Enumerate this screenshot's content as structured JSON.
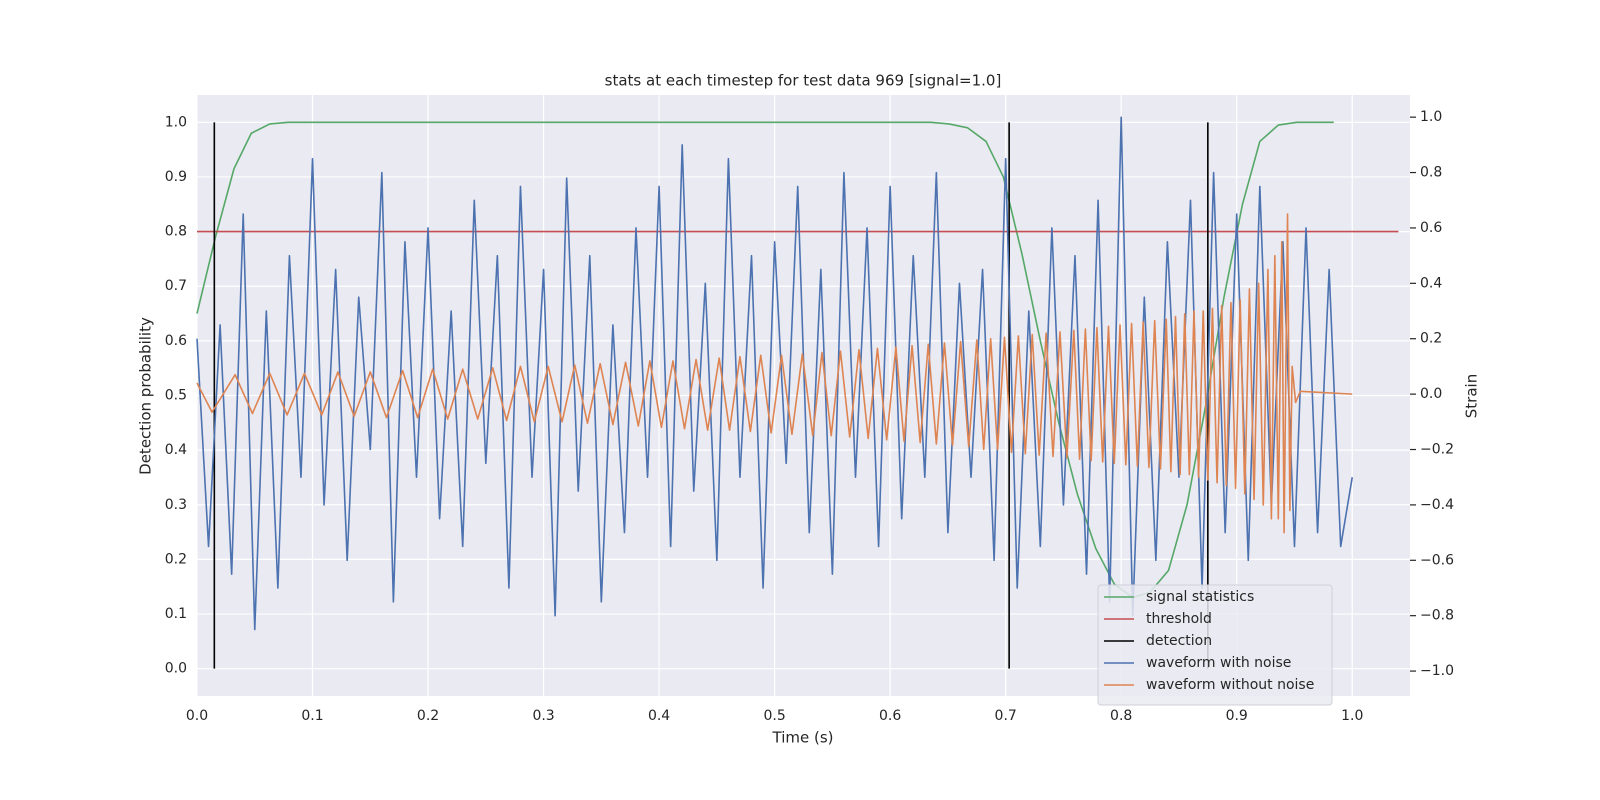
{
  "chart_data": {
    "type": "line",
    "title": "stats at each timestep for test data 969 [signal=1.0]",
    "xlabel": "Time (s)",
    "ylabel": "Detection probability",
    "y2label": "Strain",
    "xlim": [
      0,
      1.05
    ],
    "ylim": [
      -0.05,
      1.05
    ],
    "y2lim": [
      -1.09,
      1.08
    ],
    "xticks": [
      {
        "value": 0,
        "label": "0.0"
      },
      0.1,
      0.2,
      0.3,
      0.4,
      0.5,
      0.6,
      0.7,
      0.8,
      0.9,
      {
        "value": 1,
        "label": "1.0"
      }
    ],
    "yticks": [
      {
        "value": 0,
        "label": "0.0"
      },
      0.1,
      0.2,
      0.3,
      0.4,
      0.5,
      0.6,
      0.7,
      0.8,
      0.9,
      {
        "value": 1,
        "label": "1.0"
      }
    ],
    "y2ticks": [
      {
        "value": -1,
        "label": "−1.0"
      },
      {
        "value": -0.8,
        "label": "−0.8"
      },
      {
        "value": -0.6,
        "label": "−0.6"
      },
      {
        "value": -0.4,
        "label": "−0.4"
      },
      {
        "value": -0.2,
        "label": "−0.2"
      },
      {
        "value": 0,
        "label": "0.0"
      },
      0.2,
      0.4,
      0.6,
      0.8,
      {
        "value": 1,
        "label": "1.0"
      }
    ],
    "grid": true,
    "legend": "lower right",
    "series": [
      {
        "name": "signal statistics",
        "color": "#55a868",
        "kind": "line",
        "x": [
          0,
          0.016,
          0.032,
          0.047,
          0.063,
          0.079,
          0.635,
          0.651,
          0.667,
          0.683,
          0.698,
          0.714,
          0.73,
          0.746,
          0.762,
          0.778,
          0.794,
          0.81,
          0.825,
          0.841,
          0.857,
          0.873,
          0.889,
          0.905,
          0.92,
          0.936,
          0.952,
          0.968,
          0.984
        ],
        "values": [
          0.65,
          0.79,
          0.915,
          0.98,
          0.997,
          1,
          1,
          0.997,
          0.99,
          0.965,
          0.9,
          0.76,
          0.6,
          0.45,
          0.32,
          0.22,
          0.155,
          0.13,
          0.14,
          0.18,
          0.3,
          0.48,
          0.68,
          0.85,
          0.965,
          0.995,
          1,
          1,
          1
        ]
      },
      {
        "name": "threshold",
        "color": "#c44e52",
        "kind": "line",
        "x": [
          0,
          1.04
        ],
        "values": [
          0.8,
          0.8
        ]
      },
      {
        "name": "detection",
        "color": "#000000",
        "kind": "vline",
        "x": [
          0.015,
          0.703,
          0.875
        ],
        "values": [
          1,
          1,
          1
        ]
      },
      {
        "name": "waveform with noise",
        "color": "#4c72b0",
        "kind": "line",
        "axis": "y2",
        "x": [
          0,
          0.01,
          0.02,
          0.03,
          0.04,
          0.05,
          0.06,
          0.07,
          0.08,
          0.09,
          0.1,
          0.11,
          0.12,
          0.13,
          0.14,
          0.15,
          0.16,
          0.17,
          0.18,
          0.19,
          0.2,
          0.21,
          0.22,
          0.23,
          0.24,
          0.25,
          0.26,
          0.27,
          0.28,
          0.29,
          0.3,
          0.31,
          0.32,
          0.33,
          0.34,
          0.35,
          0.36,
          0.37,
          0.38,
          0.39,
          0.4,
          0.41,
          0.42,
          0.43,
          0.44,
          0.45,
          0.46,
          0.47,
          0.48,
          0.49,
          0.5,
          0.51,
          0.52,
          0.53,
          0.54,
          0.55,
          0.56,
          0.57,
          0.58,
          0.59,
          0.6,
          0.61,
          0.62,
          0.63,
          0.64,
          0.65,
          0.66,
          0.67,
          0.68,
          0.69,
          0.7,
          0.71,
          0.72,
          0.73,
          0.74,
          0.75,
          0.76,
          0.77,
          0.78,
          0.79,
          0.8,
          0.81,
          0.82,
          0.83,
          0.84,
          0.85,
          0.86,
          0.87,
          0.88,
          0.89,
          0.9,
          0.91,
          0.92,
          0.93,
          0.94,
          0.95,
          0.96,
          0.97,
          0.98,
          0.99,
          1
        ],
        "values": [
          0.2,
          -0.55,
          0.25,
          -0.65,
          0.65,
          -0.85,
          0.3,
          -0.7,
          0.5,
          -0.3,
          0.85,
          -0.4,
          0.45,
          -0.6,
          0.35,
          -0.2,
          0.8,
          -0.75,
          0.55,
          -0.3,
          0.6,
          -0.45,
          0.3,
          -0.55,
          0.7,
          -0.25,
          0.5,
          -0.7,
          0.75,
          -0.3,
          0.45,
          -0.8,
          0.78,
          -0.35,
          0.5,
          -0.75,
          0.25,
          -0.5,
          0.6,
          -0.3,
          0.75,
          -0.55,
          0.9,
          -0.35,
          0.4,
          -0.6,
          0.85,
          -0.3,
          0.5,
          -0.7,
          0.55,
          -0.25,
          0.75,
          -0.5,
          0.45,
          -0.65,
          0.8,
          -0.3,
          0.6,
          -0.55,
          0.75,
          -0.45,
          0.5,
          -0.3,
          0.8,
          -0.5,
          0.4,
          -0.3,
          0.45,
          -0.6,
          0.85,
          -0.7,
          0.3,
          -0.55,
          0.6,
          -0.4,
          0.5,
          -0.65,
          0.7,
          -0.75,
          1.0,
          -0.8,
          0.35,
          -0.6,
          0.55,
          -0.3,
          0.7,
          -0.7,
          0.8,
          -0.5,
          0.65,
          -0.6,
          0.75,
          -0.4,
          0.55,
          -0.55,
          0.6,
          -0.5,
          0.45,
          -0.55,
          -0.3
        ]
      },
      {
        "name": "waveform without noise",
        "color": "#dd8452",
        "kind": "line",
        "axis": "y2",
        "x": [
          0,
          0.013,
          0.033,
          0.048,
          0.063,
          0.078,
          0.093,
          0.108,
          0.122,
          0.136,
          0.15,
          0.164,
          0.178,
          0.191,
          0.204,
          0.217,
          0.23,
          0.243,
          0.256,
          0.268,
          0.28,
          0.292,
          0.304,
          0.316,
          0.327,
          0.338,
          0.349,
          0.36,
          0.371,
          0.382,
          0.392,
          0.402,
          0.412,
          0.422,
          0.432,
          0.442,
          0.452,
          0.461,
          0.47,
          0.479,
          0.488,
          0.497,
          0.506,
          0.515,
          0.524,
          0.533,
          0.541,
          0.549,
          0.557,
          0.565,
          0.573,
          0.581,
          0.589,
          0.597,
          0.605,
          0.612,
          0.619,
          0.626,
          0.633,
          0.64,
          0.647,
          0.654,
          0.661,
          0.668,
          0.675,
          0.681,
          0.687,
          0.693,
          0.699,
          0.705,
          0.711,
          0.717,
          0.723,
          0.729,
          0.735,
          0.741,
          0.747,
          0.753,
          0.759,
          0.764,
          0.769,
          0.774,
          0.779,
          0.784,
          0.789,
          0.794,
          0.799,
          0.804,
          0.809,
          0.814,
          0.819,
          0.824,
          0.829,
          0.834,
          0.839,
          0.843,
          0.847,
          0.851,
          0.855,
          0.859,
          0.863,
          0.867,
          0.871,
          0.875,
          0.879,
          0.883,
          0.887,
          0.891,
          0.895,
          0.899,
          0.903,
          0.907,
          0.911,
          0.915,
          0.919,
          0.923,
          0.927,
          0.93,
          0.933,
          0.936,
          0.939,
          0.941,
          0.944,
          0.946,
          0.948,
          0.951,
          0.955,
          1
        ],
        "values": [
          0.04,
          -0.065,
          0.07,
          -0.07,
          0.075,
          -0.075,
          0.075,
          -0.075,
          0.08,
          -0.08,
          0.08,
          -0.085,
          0.085,
          -0.085,
          0.09,
          -0.09,
          0.09,
          -0.09,
          0.095,
          -0.095,
          0.1,
          -0.1,
          0.1,
          -0.1,
          0.105,
          -0.105,
          0.11,
          -0.11,
          0.115,
          -0.115,
          0.12,
          -0.12,
          0.12,
          -0.125,
          0.125,
          -0.13,
          0.13,
          -0.13,
          0.135,
          -0.135,
          0.14,
          -0.14,
          0.14,
          -0.145,
          0.145,
          -0.15,
          0.15,
          -0.15,
          0.155,
          -0.155,
          0.16,
          -0.16,
          0.165,
          -0.165,
          0.17,
          -0.17,
          0.175,
          -0.175,
          0.18,
          -0.18,
          0.185,
          -0.185,
          0.19,
          -0.19,
          0.195,
          -0.2,
          0.2,
          -0.2,
          0.205,
          -0.21,
          0.21,
          -0.215,
          0.215,
          -0.22,
          0.22,
          -0.225,
          0.225,
          -0.23,
          0.23,
          -0.235,
          0.235,
          -0.24,
          0.24,
          -0.245,
          0.245,
          -0.25,
          0.25,
          -0.255,
          0.255,
          -0.26,
          0.26,
          -0.265,
          0.265,
          -0.27,
          0.27,
          -0.28,
          0.28,
          -0.29,
          0.29,
          -0.29,
          0.3,
          -0.3,
          0.3,
          -0.31,
          0.31,
          -0.32,
          0.32,
          -0.33,
          0.33,
          -0.34,
          0.34,
          -0.36,
          0.38,
          -0.38,
          0.4,
          -0.4,
          0.45,
          -0.45,
          0.5,
          -0.45,
          0.55,
          -0.5,
          0.65,
          -0.42,
          0.1,
          -0.03,
          0.01,
          0
        ]
      }
    ]
  }
}
